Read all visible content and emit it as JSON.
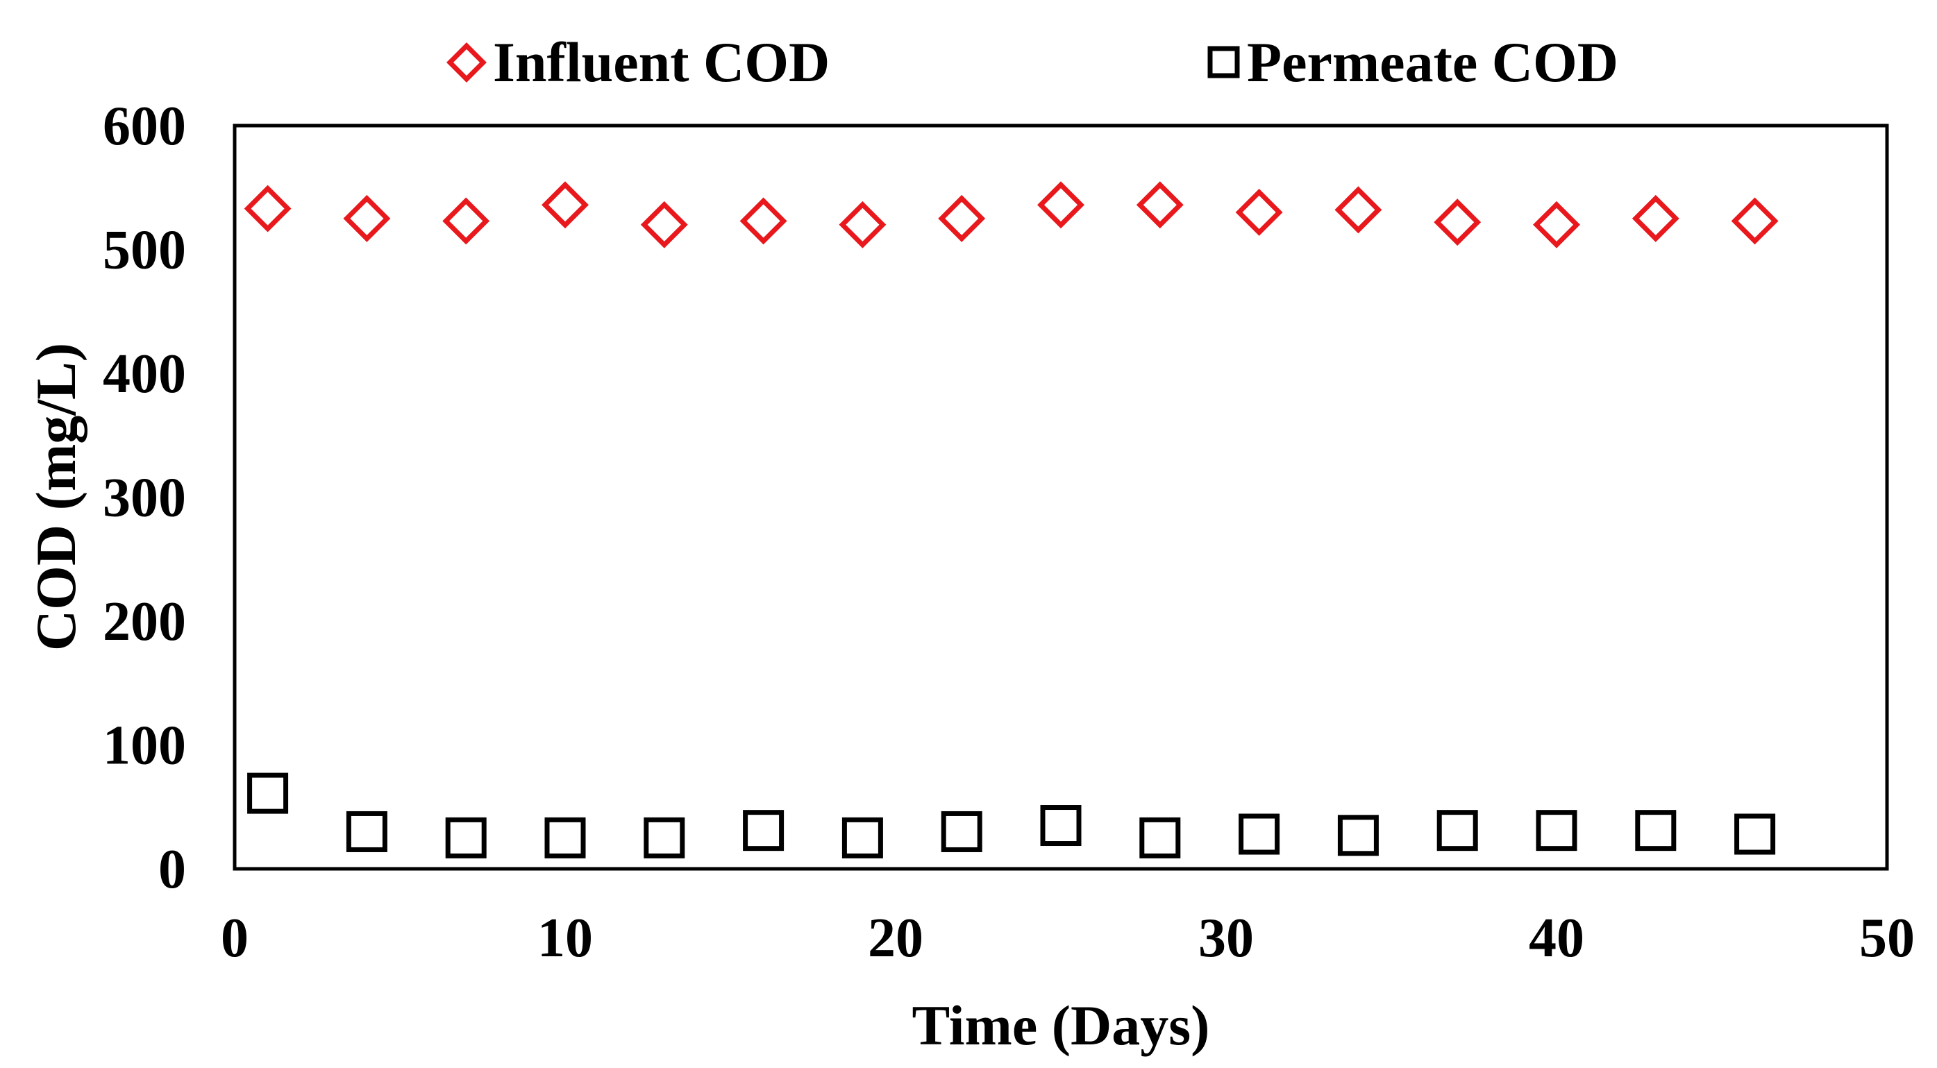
{
  "chart_data": {
    "type": "scatter",
    "title": "",
    "xlabel": "Time (Days)",
    "ylabel": "COD (mg/L)",
    "xlim": [
      0,
      50
    ],
    "ylim": [
      0,
      600
    ],
    "x_ticks": [
      "0",
      "10",
      "20",
      "30",
      "40",
      "50"
    ],
    "y_ticks": [
      "0",
      "100",
      "200",
      "300",
      "400",
      "500",
      "600"
    ],
    "grid": false,
    "legend_position": "top",
    "series": [
      {
        "name": "Influent COD",
        "marker": "diamond",
        "color": "#e8181c",
        "x": [
          1,
          4,
          7,
          10,
          13,
          16,
          19,
          22,
          25,
          28,
          31,
          34,
          37,
          40,
          43,
          46
        ],
        "y": [
          533,
          525,
          523,
          536,
          520,
          523,
          520,
          525,
          536,
          536,
          530,
          532,
          522,
          520,
          525,
          523
        ]
      },
      {
        "name": "Permeate COD",
        "marker": "square",
        "color": "#000000",
        "x": [
          1,
          4,
          7,
          10,
          13,
          16,
          19,
          22,
          25,
          28,
          31,
          34,
          37,
          40,
          43,
          46
        ],
        "y": [
          61,
          30,
          25,
          25,
          25,
          31,
          25,
          30,
          35,
          25,
          28,
          27,
          31,
          31,
          31,
          28
        ]
      }
    ]
  }
}
